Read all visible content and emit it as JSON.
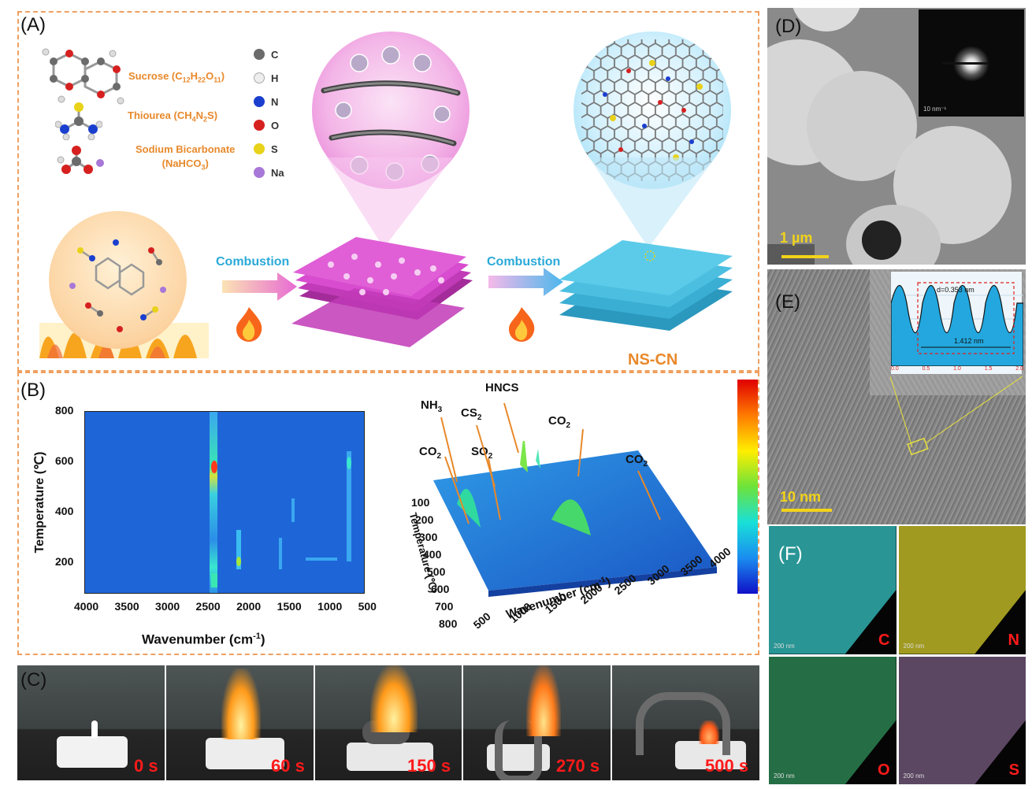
{
  "panels": {
    "a": "(A)",
    "b": "(B)",
    "c": "(C)",
    "d": "(D)",
    "e": "(E)",
    "f": "(F)"
  },
  "panel_a": {
    "precursors": [
      {
        "name": "Sucrose (C",
        "sub1": "12",
        "mid1": "H",
        "sub2": "22",
        "mid2": "O",
        "sub3": "11",
        "end": ")"
      },
      {
        "name": "Thiourea (CH",
        "sub1": "4",
        "mid1": "N",
        "sub2": "2",
        "mid2": "S)",
        "sub3": "",
        "end": ""
      },
      {
        "name": "Sodium Bicarbonate",
        "line2": "(NaHCO",
        "sub1": "3",
        "end": ")"
      }
    ],
    "elements": [
      {
        "symbol": "C",
        "color": "#6b6b6b"
      },
      {
        "symbol": "H",
        "color": "#e6e6e6"
      },
      {
        "symbol": "N",
        "color": "#1a3fcf"
      },
      {
        "symbol": "O",
        "color": "#d62020"
      },
      {
        "symbol": "S",
        "color": "#e8d21a"
      },
      {
        "symbol": "Na",
        "color": "#a878d8"
      }
    ],
    "arrow_label_1": "Combustion",
    "arrow_label_2": "Combustion",
    "product": "NS-CN"
  },
  "panel_b": {
    "contour": {
      "ylabel": "Temperature (℃)",
      "xlabel": "Wavenumber (cm",
      "xlabel_sup": "-1",
      "xlabel_end": ")",
      "x_ticks": [
        "4000",
        "3500",
        "3000",
        "2500",
        "2000",
        "1500",
        "1000",
        "500"
      ],
      "y_ticks": [
        "800",
        "600",
        "400",
        "200"
      ]
    },
    "surface": {
      "labels": [
        {
          "text": "NH",
          "sub": "3"
        },
        {
          "text": "CS",
          "sub": "2"
        },
        {
          "text": "HNCS",
          "sub": ""
        },
        {
          "text": "CO",
          "sub": "2"
        },
        {
          "text": "CO",
          "sub": "2"
        },
        {
          "text": "SO",
          "sub": "2"
        },
        {
          "text": "CO",
          "sub": "2"
        }
      ],
      "temp_ticks": [
        "100",
        "200",
        "300",
        "400",
        "500",
        "600",
        "700",
        "800"
      ],
      "wn_ticks": [
        "500",
        "1000",
        "1500",
        "2000",
        "2500",
        "3000",
        "3500",
        "4000"
      ],
      "ylabel": "Temperature (℃)",
      "xlabel": "Wavenumber (cm",
      "xlabel_sup": "-1",
      "xlabel_end": ")"
    }
  },
  "panel_c": {
    "times": [
      "0 s",
      "60 s",
      "150 s",
      "270 s",
      "500 s"
    ]
  },
  "panel_d": {
    "scale_bar": "1 µm",
    "inset_scale": "10 nm⁻¹"
  },
  "panel_e": {
    "scale_bar": "10 nm",
    "d_spacing": "d=0.353 nm",
    "span": "1.412 nm",
    "inset_ticks": [
      "0.0",
      "0.5",
      "1.0",
      "1.5",
      "2.0"
    ]
  },
  "panel_f": {
    "maps": [
      {
        "element": "C",
        "color": "#35c6c6",
        "scale": "200 nm"
      },
      {
        "element": "N",
        "color": "#d4cc2a",
        "scale": "200 nm"
      },
      {
        "element": "O",
        "color": "#3fc47a",
        "scale": "200 nm"
      },
      {
        "element": "S",
        "color": "#c79ad6",
        "scale": "200 nm"
      }
    ]
  }
}
